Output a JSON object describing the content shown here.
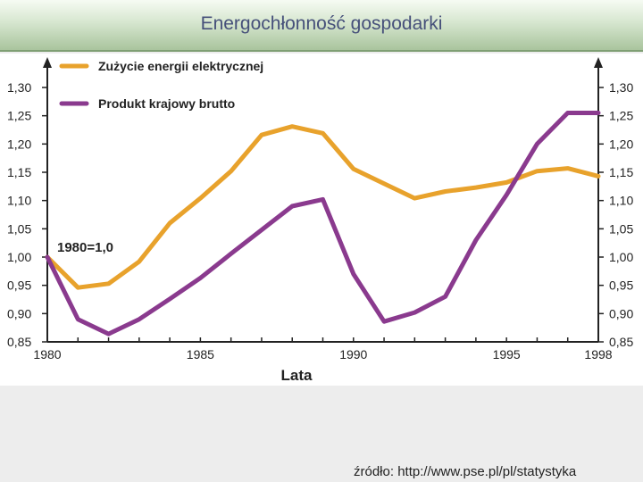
{
  "slide": {
    "title": "Energochłonność gospodarki",
    "source": "źródło: http://www.pse.pl/pl/statystyka"
  },
  "chart_data": {
    "type": "line",
    "title": "Energochłonność gospodarki",
    "xlabel": "Lata",
    "ylabel": "",
    "annotation": "1980=1,0",
    "xlim": [
      1980,
      1998
    ],
    "ylim": [
      0.85,
      1.3
    ],
    "x_ticks": [
      1980,
      1985,
      1990,
      1995,
      1998
    ],
    "y_ticks": [
      "0,85",
      "0,90",
      "0,95",
      "1,00",
      "1,05",
      "1,10",
      "1,15",
      "1,20",
      "1,25",
      "1,30"
    ],
    "legend_position": "top-left",
    "colors": {
      "energy": "#e8a22c",
      "gdp": "#8a3a8e"
    },
    "series": [
      {
        "name": "Zużycie energii elektrycznej",
        "color": "#e8a22c",
        "x": [
          1980,
          1981,
          1982,
          1983,
          1984,
          1985,
          1986,
          1987,
          1988,
          1989,
          1990,
          1991,
          1992,
          1993,
          1994,
          1995,
          1996,
          1997,
          1998
        ],
        "values": [
          1.0,
          0.946,
          0.953,
          0.992,
          1.06,
          1.104,
          1.152,
          1.216,
          1.231,
          1.219,
          1.156,
          1.13,
          1.104,
          1.116,
          1.123,
          1.132,
          1.152,
          1.157,
          1.143
        ]
      },
      {
        "name": "Produkt krajowy brutto",
        "color": "#8a3a8e",
        "x": [
          1980,
          1981,
          1982,
          1983,
          1984,
          1985,
          1986,
          1987,
          1988,
          1989,
          1990,
          1991,
          1992,
          1993,
          1994,
          1995,
          1996,
          1997,
          1998
        ],
        "values": [
          1.0,
          0.89,
          0.864,
          0.89,
          0.926,
          0.963,
          1.006,
          1.048,
          1.09,
          1.102,
          0.97,
          0.886,
          0.902,
          0.93,
          1.03,
          1.11,
          1.2,
          1.255,
          1.255
        ]
      }
    ]
  }
}
